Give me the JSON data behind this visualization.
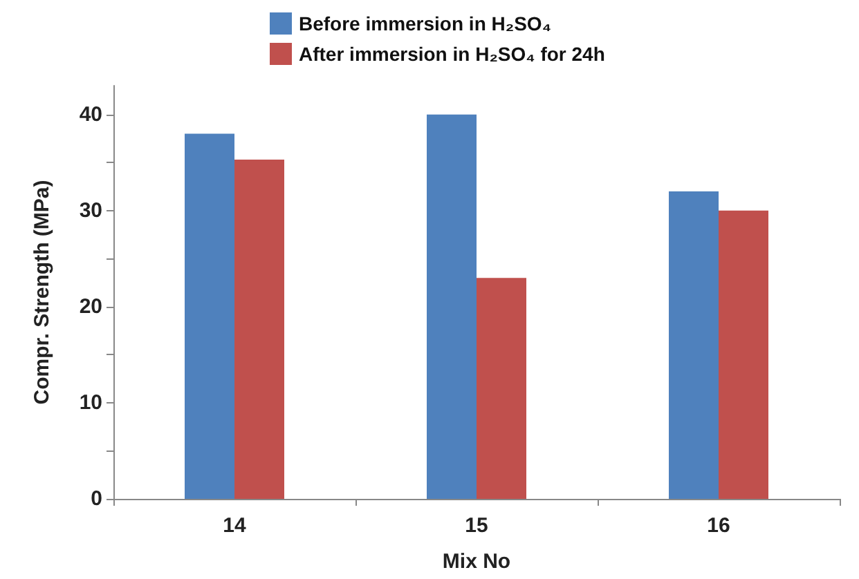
{
  "chart_data": {
    "type": "bar",
    "xlabel": "Mix No",
    "ylabel": "Compr. Strength (MPa)",
    "categories": [
      "14",
      "15",
      "16"
    ],
    "series": [
      {
        "name": "Before immersion in H₂SO₄",
        "color": "#4f81bd",
        "values": [
          38,
          40,
          32
        ]
      },
      {
        "name": "After immersion in H₂SO₄ for 24h",
        "color": "#c0504d",
        "values": [
          35.3,
          23,
          30
        ]
      }
    ],
    "ylim": [
      0,
      43
    ],
    "yticks": [
      0,
      {
        "value": 5,
        "label": null
      },
      10,
      {
        "value": 15,
        "label": null
      },
      20,
      {
        "value": 25,
        "label": null
      },
      30,
      {
        "value": 35,
        "label": null
      },
      40
    ],
    "grid": false,
    "legend": "top"
  }
}
